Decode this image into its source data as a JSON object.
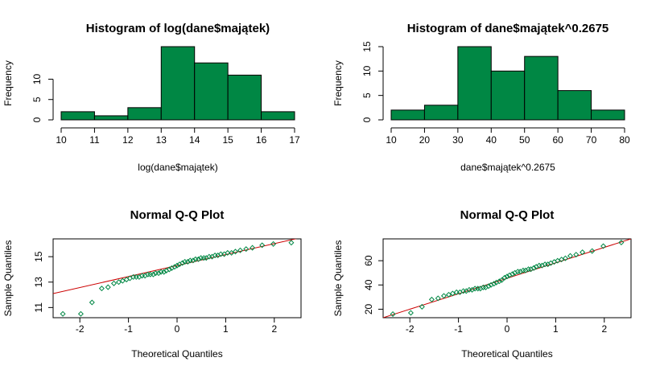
{
  "chart_data": [
    {
      "type": "bar",
      "title": "Histogram of log(dane$majątek)",
      "xlabel": "log(dane$majątek)",
      "ylabel": "Frequency",
      "bin_edges": [
        10,
        11,
        12,
        13,
        14,
        15,
        16,
        17
      ],
      "values": [
        2,
        1,
        3,
        18,
        14,
        11,
        2
      ],
      "xticks": [
        10,
        11,
        12,
        13,
        14,
        15,
        16,
        17
      ],
      "yticks": [
        0,
        5,
        10
      ],
      "xlim": [
        10,
        17
      ],
      "ylim": [
        0,
        18
      ],
      "bar_color": "#008744"
    },
    {
      "type": "bar",
      "title": "Histogram of dane$majątek^0.2675",
      "xlabel": "dane$majątek^0.2675",
      "ylabel": "Frequency",
      "bin_edges": [
        10,
        20,
        30,
        40,
        50,
        60,
        70,
        80
      ],
      "values": [
        2,
        3,
        15,
        10,
        13,
        6,
        2
      ],
      "xticks": [
        10,
        20,
        30,
        40,
        50,
        60,
        70,
        80
      ],
      "yticks": [
        0,
        5,
        10,
        15
      ],
      "xlim": [
        10,
        80
      ],
      "ylim": [
        0,
        15
      ],
      "bar_color": "#008744"
    },
    {
      "type": "scatter",
      "title": "Normal Q-Q Plot",
      "xlabel": "Theoretical Quantiles",
      "ylabel": "Sample Quantiles",
      "x": [
        -2.35,
        -1.98,
        -1.75,
        -1.55,
        -1.42,
        -1.3,
        -1.2,
        -1.12,
        -1.04,
        -0.97,
        -0.9,
        -0.84,
        -0.78,
        -0.72,
        -0.66,
        -0.6,
        -0.55,
        -0.49,
        -0.44,
        -0.38,
        -0.33,
        -0.27,
        -0.22,
        -0.16,
        -0.11,
        -0.05,
        0.0,
        0.05,
        0.11,
        0.16,
        0.22,
        0.27,
        0.33,
        0.38,
        0.44,
        0.49,
        0.55,
        0.6,
        0.66,
        0.72,
        0.78,
        0.84,
        0.9,
        0.97,
        1.04,
        1.12,
        1.2,
        1.3,
        1.42,
        1.55,
        1.75,
        1.98,
        2.35
      ],
      "y": [
        10.5,
        10.5,
        11.4,
        12.5,
        12.6,
        12.9,
        13.0,
        13.1,
        13.2,
        13.3,
        13.4,
        13.4,
        13.4,
        13.5,
        13.5,
        13.6,
        13.6,
        13.6,
        13.7,
        13.7,
        13.8,
        13.8,
        13.9,
        14.0,
        14.1,
        14.2,
        14.3,
        14.4,
        14.5,
        14.6,
        14.6,
        14.7,
        14.7,
        14.8,
        14.8,
        14.9,
        14.9,
        14.9,
        15.0,
        15.0,
        15.1,
        15.1,
        15.2,
        15.2,
        15.3,
        15.3,
        15.4,
        15.5,
        15.6,
        15.7,
        15.9,
        16.0,
        16.1
      ],
      "xticks": [
        -2,
        -1,
        0,
        1,
        2
      ],
      "yticks": [
        11,
        13,
        15
      ],
      "xlim": [
        -2.55,
        2.55
      ],
      "ylim": [
        10.2,
        16.4
      ],
      "line": {
        "x1": -2.55,
        "y1": 12.1,
        "x2": 2.55,
        "y2": 16.5
      },
      "point_color": "#008744",
      "line_color": "#cc0000"
    },
    {
      "type": "scatter",
      "title": "Normal Q-Q Plot",
      "xlabel": "Theoretical Quantiles",
      "ylabel": "Sample Quantiles",
      "x": [
        -2.35,
        -1.98,
        -1.75,
        -1.55,
        -1.42,
        -1.3,
        -1.2,
        -1.12,
        -1.04,
        -0.97,
        -0.9,
        -0.84,
        -0.78,
        -0.72,
        -0.66,
        -0.6,
        -0.55,
        -0.49,
        -0.44,
        -0.38,
        -0.33,
        -0.27,
        -0.22,
        -0.16,
        -0.11,
        -0.05,
        0.0,
        0.05,
        0.11,
        0.16,
        0.22,
        0.27,
        0.33,
        0.38,
        0.44,
        0.49,
        0.55,
        0.6,
        0.66,
        0.72,
        0.78,
        0.84,
        0.9,
        0.97,
        1.04,
        1.12,
        1.2,
        1.3,
        1.42,
        1.55,
        1.75,
        1.98,
        2.35
      ],
      "y": [
        16,
        17,
        22,
        28,
        29,
        31,
        32,
        33,
        34,
        34,
        35,
        35,
        36,
        36,
        37,
        37,
        37,
        38,
        38,
        39,
        40,
        41,
        42,
        43,
        44,
        46,
        47,
        48,
        49,
        50,
        51,
        51,
        52,
        52,
        53,
        53,
        54,
        55,
        56,
        56,
        57,
        57,
        58,
        59,
        60,
        61,
        62,
        64,
        65,
        67,
        68,
        72,
        75
      ],
      "xticks": [
        -2,
        -1,
        0,
        1,
        2
      ],
      "yticks": [
        20,
        40,
        60
      ],
      "xlim": [
        -2.55,
        2.55
      ],
      "ylim": [
        13,
        78
      ],
      "line": {
        "x1": -2.55,
        "y1": 13,
        "x2": 2.55,
        "y2": 78
      },
      "point_color": "#008744",
      "line_color": "#cc0000"
    }
  ]
}
